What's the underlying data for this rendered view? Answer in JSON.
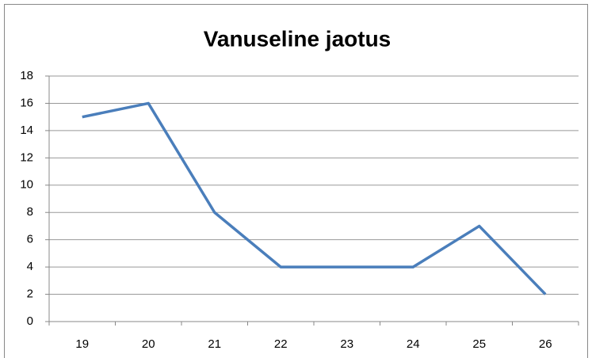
{
  "chart_data": {
    "type": "line",
    "title": "Vanuseline jaotus",
    "categories": [
      "19",
      "20",
      "21",
      "22",
      "23",
      "24",
      "25",
      "26"
    ],
    "values": [
      15,
      16,
      8,
      4,
      4,
      4,
      7,
      2
    ],
    "color": "#4a7ebb",
    "ylim": [
      0,
      18
    ],
    "yticks": [
      0,
      2,
      4,
      6,
      8,
      10,
      12,
      14,
      16,
      18
    ],
    "grid": true
  }
}
